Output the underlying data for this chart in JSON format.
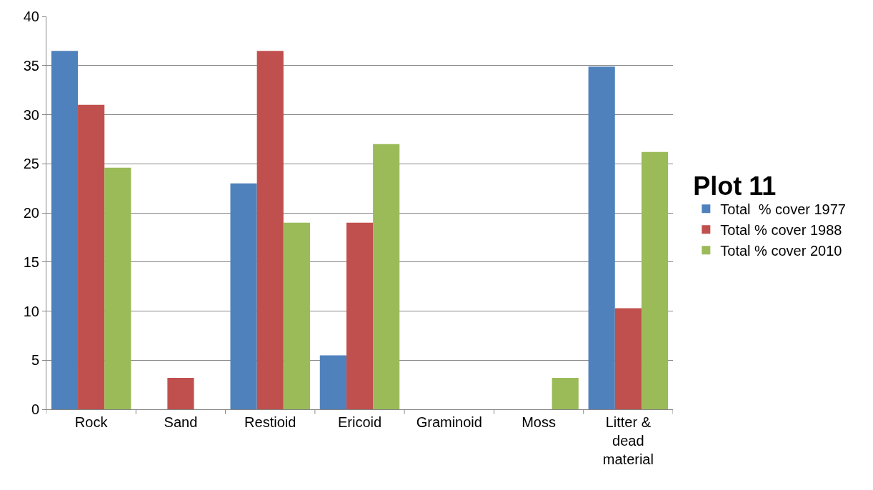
{
  "chart_data": {
    "type": "bar",
    "legend_title": "Plot 11",
    "categories": [
      "Rock",
      "Sand",
      "Restioid",
      "Ericoid",
      "Graminoid",
      "Moss",
      "Litter & dead material"
    ],
    "series": [
      {
        "name": "Total  % cover 1977",
        "color": "#4f81bd",
        "values": [
          36.5,
          0,
          23,
          5.5,
          0,
          0,
          34.9
        ]
      },
      {
        "name": "Total % cover 1988",
        "color": "#c0504d",
        "values": [
          31,
          3.2,
          36.5,
          19,
          0,
          0,
          10.3
        ]
      },
      {
        "name": "Total % cover 2010",
        "color": "#9bbb59",
        "values": [
          24.6,
          0,
          19,
          27,
          0,
          3.2,
          26.2
        ]
      }
    ],
    "ylim": [
      0,
      40
    ],
    "yticks": [
      0,
      5,
      10,
      15,
      20,
      25,
      30,
      35,
      40
    ],
    "grid": "y",
    "legend": "right"
  }
}
